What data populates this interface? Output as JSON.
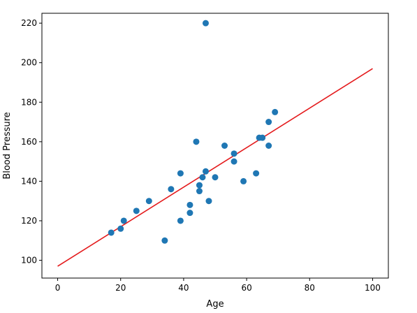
{
  "chart_data": {
    "type": "scatter",
    "title": "",
    "xlabel": "Age",
    "ylabel": "Blood Pressure",
    "xlim": [
      -5,
      105
    ],
    "ylim": [
      91,
      225
    ],
    "xticks": [
      0,
      20,
      40,
      60,
      80,
      100
    ],
    "yticks": [
      100,
      120,
      140,
      160,
      180,
      200,
      220
    ],
    "grid": false,
    "legend": "none",
    "series": [
      {
        "kind": "scatter",
        "color": "#1f77b4",
        "points": [
          {
            "x": 17,
            "y": 114
          },
          {
            "x": 20,
            "y": 116
          },
          {
            "x": 21,
            "y": 120
          },
          {
            "x": 25,
            "y": 125
          },
          {
            "x": 29,
            "y": 130
          },
          {
            "x": 34,
            "y": 110
          },
          {
            "x": 36,
            "y": 136
          },
          {
            "x": 39,
            "y": 120
          },
          {
            "x": 39,
            "y": 144
          },
          {
            "x": 42,
            "y": 124
          },
          {
            "x": 42,
            "y": 128
          },
          {
            "x": 44,
            "y": 160
          },
          {
            "x": 45,
            "y": 135
          },
          {
            "x": 45,
            "y": 138
          },
          {
            "x": 46,
            "y": 142
          },
          {
            "x": 47,
            "y": 145
          },
          {
            "x": 47,
            "y": 220
          },
          {
            "x": 48,
            "y": 130
          },
          {
            "x": 50,
            "y": 142
          },
          {
            "x": 53,
            "y": 158
          },
          {
            "x": 56,
            "y": 150
          },
          {
            "x": 56,
            "y": 154
          },
          {
            "x": 59,
            "y": 140
          },
          {
            "x": 63,
            "y": 144
          },
          {
            "x": 64,
            "y": 162
          },
          {
            "x": 65,
            "y": 162
          },
          {
            "x": 67,
            "y": 158
          },
          {
            "x": 67,
            "y": 170
          },
          {
            "x": 69,
            "y": 175
          }
        ]
      },
      {
        "kind": "line",
        "color": "#e41a1c",
        "points": [
          {
            "x": 0,
            "y": 97
          },
          {
            "x": 100,
            "y": 197
          }
        ]
      }
    ]
  }
}
